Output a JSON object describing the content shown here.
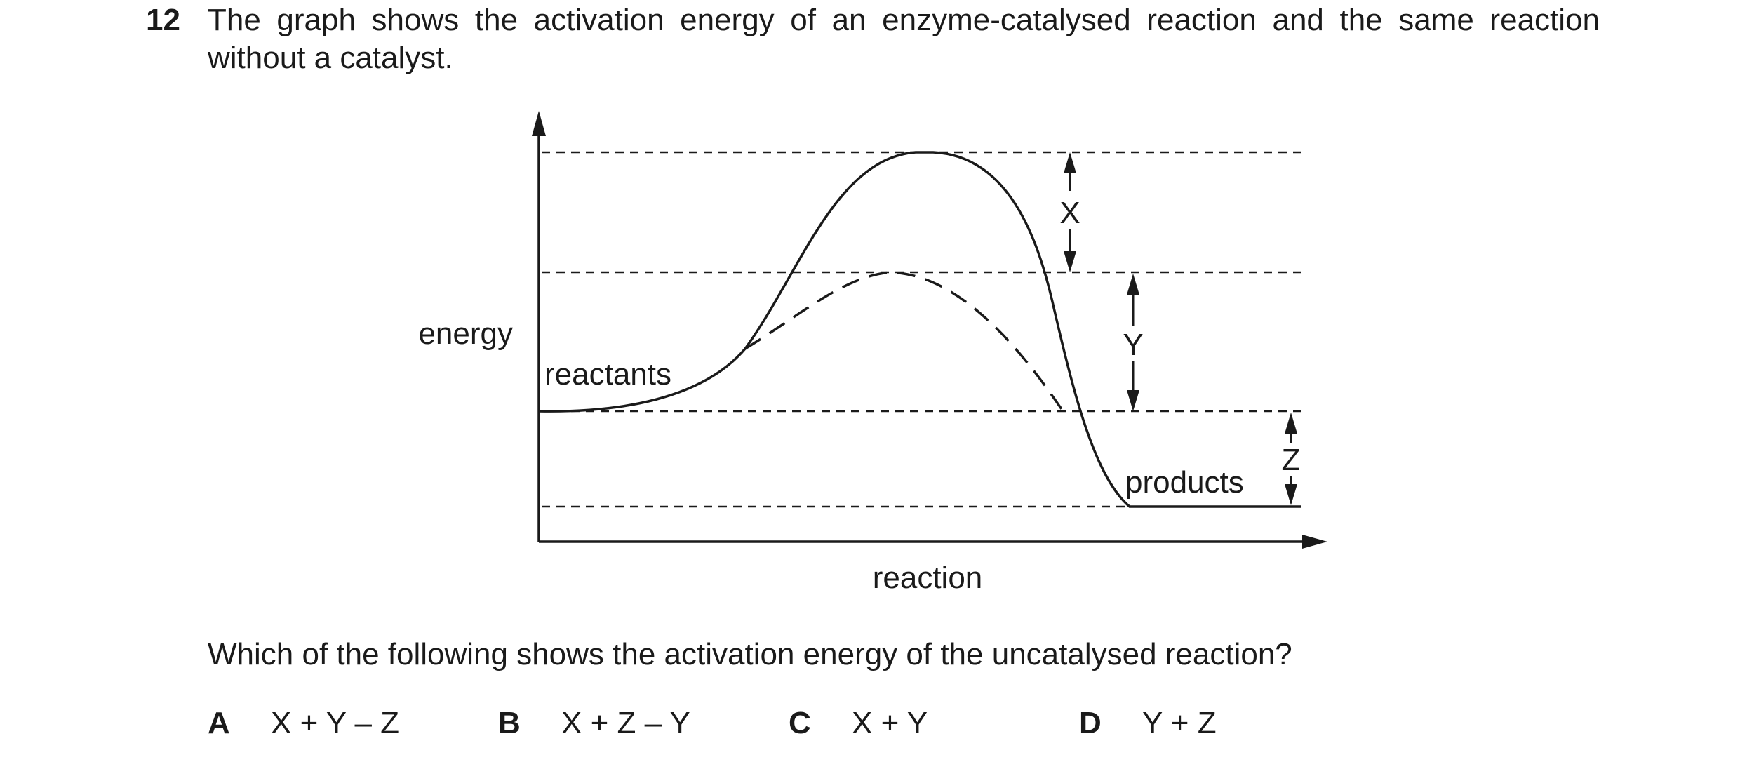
{
  "question": {
    "number": "12",
    "stem": "The graph shows the activation energy of an enzyme-catalysed reaction and the same reaction without a catalyst.",
    "prompt": "Which of the following shows the activation energy of the uncatalysed reaction?",
    "options": [
      {
        "letter": "A",
        "text": "X + Y – Z"
      },
      {
        "letter": "B",
        "text": "X + Z – Y"
      },
      {
        "letter": "C",
        "text": "X + Y"
      },
      {
        "letter": "D",
        "text": "Y + Z"
      }
    ]
  },
  "graph": {
    "y_axis_label": "energy",
    "x_axis_label": "reaction",
    "reactants_label": "reactants",
    "products_label": "products",
    "arrow_labels": {
      "x": "X",
      "y": "Y",
      "z": "Z"
    },
    "curves": [
      "uncatalysed-solid",
      "catalysed-dashed"
    ]
  }
}
